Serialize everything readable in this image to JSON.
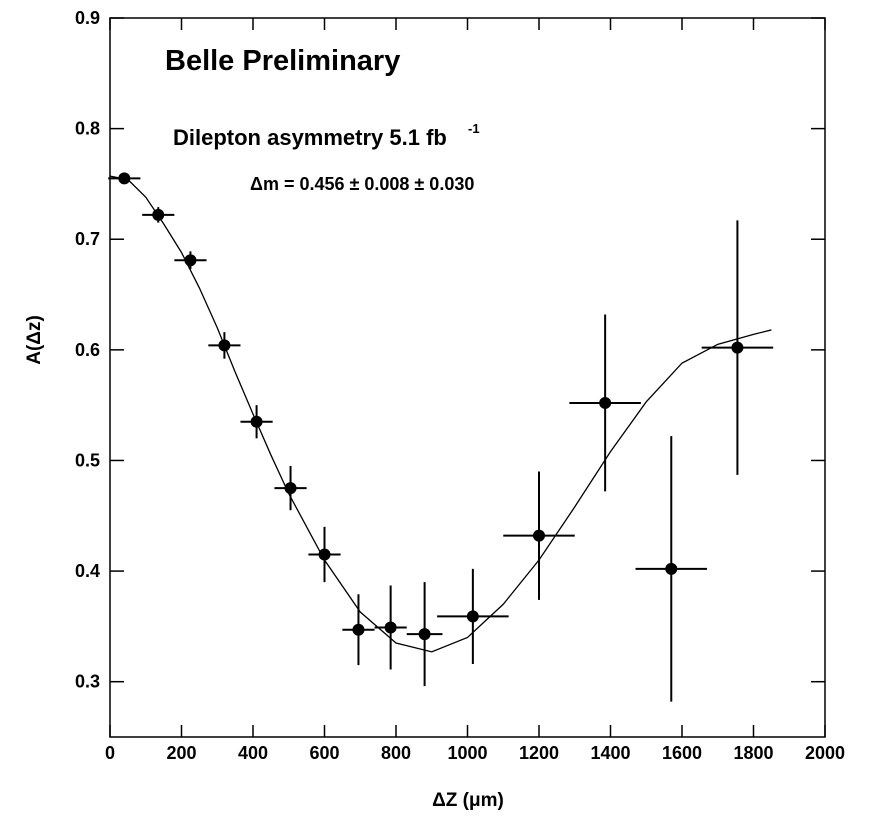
{
  "chart_data": {
    "type": "scatter",
    "annotations": [
      "Belle Preliminary",
      "Dilepton asymmetry  5.1 fb",
      "-1",
      "Δm = 0.456 ± 0.008 ± 0.030"
    ],
    "x_label": "ΔZ (μm)",
    "y_label": "A(Δz)",
    "xlim": [
      0,
      2000
    ],
    "ylim": [
      0.25,
      0.9
    ],
    "xticks": [
      0,
      200,
      400,
      600,
      800,
      1000,
      1200,
      1400,
      1600,
      1800,
      2000
    ],
    "yticks": [
      0.3,
      0.4,
      0.5,
      0.6,
      0.7,
      0.8,
      0.9
    ],
    "color": "#000000",
    "points": {
      "x": [
        40,
        135,
        225,
        320,
        410,
        505,
        600,
        695,
        785,
        880,
        1015,
        1200,
        1385,
        1570,
        1755
      ],
      "xerr": [
        45,
        45,
        45,
        45,
        45,
        45,
        45,
        45,
        45,
        50,
        100,
        100,
        100,
        100,
        100
      ],
      "values": [
        0.755,
        0.722,
        0.681,
        0.604,
        0.535,
        0.475,
        0.415,
        0.347,
        0.349,
        0.343,
        0.359,
        0.432,
        0.552,
        0.402,
        0.602
      ],
      "yerr": [
        0.005,
        0.007,
        0.008,
        0.012,
        0.015,
        0.02,
        0.025,
        0.032,
        0.038,
        0.047,
        0.043,
        0.058,
        0.08,
        0.12,
        0.115
      ]
    },
    "fit": {
      "x": [
        0,
        50,
        100,
        150,
        200,
        250,
        300,
        350,
        400,
        450,
        500,
        600,
        700,
        800,
        900,
        1000,
        1100,
        1200,
        1300,
        1400,
        1500,
        1600,
        1700,
        1800,
        1850
      ],
      "values": [
        0.757,
        0.754,
        0.738,
        0.714,
        0.688,
        0.656,
        0.62,
        0.58,
        0.542,
        0.505,
        0.47,
        0.41,
        0.363,
        0.335,
        0.327,
        0.34,
        0.37,
        0.41,
        0.458,
        0.508,
        0.553,
        0.588,
        0.605,
        0.614,
        0.618
      ]
    }
  }
}
